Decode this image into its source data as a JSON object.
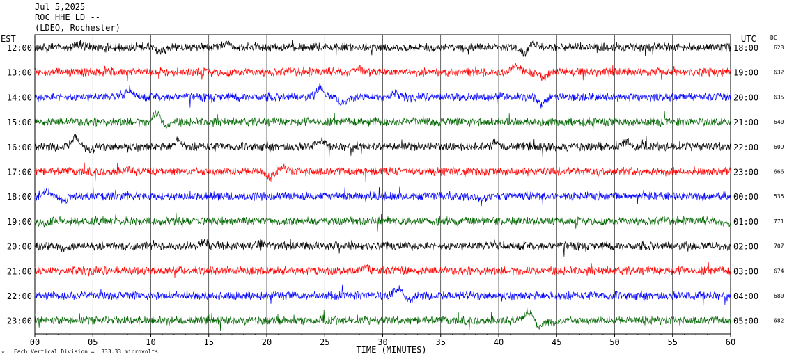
{
  "header": {
    "date": "Jul 5,2025",
    "station": "ROC HHE LD --",
    "network": "(LDEO, Rochester)"
  },
  "left_zone": "EST",
  "right_zone": "UTC",
  "dc_label": "DC",
  "footer": {
    "division_note": "Each Vertical Division =  333.33 microvolts"
  },
  "colors": {
    "black": "#000000",
    "red": "#ff0000",
    "blue": "#0000ff",
    "green": "#006400",
    "grid": "#000000"
  },
  "chart_data": {
    "type": "line",
    "title": "",
    "xlabel": "TIME (MINUTES)",
    "ylabel": "",
    "xlim": [
      0,
      60
    ],
    "x_ticks": [
      "00",
      "05",
      "10",
      "15",
      "20",
      "25",
      "30",
      "35",
      "40",
      "45",
      "50",
      "55",
      "60"
    ],
    "grid": true,
    "series": [
      {
        "est": "12:00",
        "utc": "18:00",
        "dc": "623",
        "color": "black",
        "events": [
          [
            3.8,
            -0.4
          ],
          [
            10.8,
            0.6
          ],
          [
            16.5,
            -0.5
          ],
          [
            42.2,
            0.8
          ],
          [
            43.0,
            -0.6
          ]
        ]
      },
      {
        "est": "13:00",
        "utc": "19:00",
        "dc": "632",
        "color": "red",
        "events": [
          [
            28.0,
            -0.4
          ],
          [
            41.5,
            -0.8
          ],
          [
            43.8,
            0.7
          ]
        ]
      },
      {
        "est": "14:00",
        "utc": "20:00",
        "dc": "635",
        "color": "blue",
        "events": [
          [
            8.2,
            -0.8
          ],
          [
            24.6,
            -1.2
          ],
          [
            26.5,
            0.8
          ],
          [
            31.0,
            -0.4
          ],
          [
            43.7,
            0.9
          ]
        ]
      },
      {
        "est": "15:00",
        "utc": "21:00",
        "dc": "640",
        "color": "green",
        "events": [
          [
            10.5,
            -1.0
          ],
          [
            11.4,
            0.5
          ]
        ]
      },
      {
        "est": "16:00",
        "utc": "22:00",
        "dc": "609",
        "color": "black",
        "events": [
          [
            3.5,
            -1.1
          ],
          [
            4.8,
            0.5
          ],
          [
            12.4,
            -0.8
          ],
          [
            24.6,
            -0.8
          ],
          [
            39.7,
            -0.5
          ],
          [
            51.0,
            -0.6
          ]
        ]
      },
      {
        "est": "17:00",
        "utc": "23:00",
        "dc": "666",
        "color": "red",
        "events": [
          [
            8.0,
            -0.3
          ],
          [
            20.2,
            0.7
          ],
          [
            21.5,
            -0.4
          ]
        ]
      },
      {
        "est": "18:00",
        "utc": "00:00",
        "dc": "535",
        "color": "blue",
        "events": [
          [
            1.0,
            -0.6
          ],
          [
            2.5,
            0.5
          ],
          [
            38.5,
            0.3
          ]
        ]
      },
      {
        "est": "19:00",
        "utc": "01:00",
        "dc": "771",
        "color": "green",
        "events": [
          [
            0.8,
            0.3
          ],
          [
            59.8,
            0.5
          ]
        ]
      },
      {
        "est": "20:00",
        "utc": "02:00",
        "dc": "707",
        "color": "black",
        "events": [
          [
            2.5,
            0.5
          ],
          [
            14.6,
            -0.4
          ],
          [
            19.6,
            -0.4
          ]
        ]
      },
      {
        "est": "21:00",
        "utc": "03:00",
        "dc": "674",
        "color": "red",
        "events": [
          [
            28.5,
            -0.3
          ]
        ]
      },
      {
        "est": "22:00",
        "utc": "04:00",
        "dc": "680",
        "color": "blue",
        "events": [
          [
            31.3,
            -0.9
          ],
          [
            32.3,
            0.5
          ]
        ]
      },
      {
        "est": "23:00",
        "utc": "05:00",
        "dc": "682",
        "color": "green",
        "events": [
          [
            42.6,
            -1.1
          ],
          [
            43.5,
            0.8
          ],
          [
            44.8,
            0.4
          ]
        ]
      }
    ]
  }
}
